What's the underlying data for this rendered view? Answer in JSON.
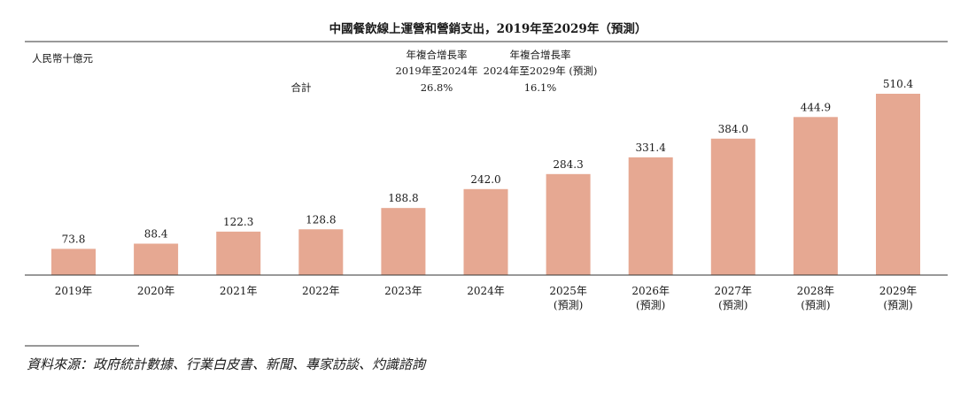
{
  "chart_data": {
    "type": "bar",
    "title": "中國餐飲線上運營和營銷支出，2019年至2029年（預測）",
    "unit_label": "人民幣十億元",
    "categories": [
      "2019年",
      "2020年",
      "2021年",
      "2022年",
      "2023年",
      "2024年",
      "2025年",
      "2026年",
      "2027年",
      "2028年",
      "2029年"
    ],
    "category_sublabels": [
      "",
      "",
      "",
      "",
      "",
      "",
      "(預測)",
      "(預測)",
      "(預測)",
      "(預測)",
      "(預測)"
    ],
    "values": [
      73.8,
      88.4,
      122.3,
      128.8,
      188.8,
      242.0,
      284.3,
      331.4,
      384.0,
      444.9,
      510.4
    ],
    "value_labels": [
      "73.8",
      "88.4",
      "122.3",
      "128.8",
      "188.8",
      "242.0",
      "284.3",
      "331.4",
      "384.0",
      "444.9",
      "510.4"
    ],
    "ylim": [
      0,
      510.4
    ],
    "bar_color": "#e6a892",
    "cagr": {
      "row_label": "合計",
      "periods": [
        {
          "heading": "年複合增長率",
          "range": "2019年至2024年",
          "value": "26.8%"
        },
        {
          "heading": "年複合增長率",
          "range": "2024年至2029年 (預測)",
          "value": "16.1%"
        }
      ]
    }
  },
  "source_note": "資料來源：政府統計數據、行業白皮書、新聞、專家訪談、灼識諮詢"
}
